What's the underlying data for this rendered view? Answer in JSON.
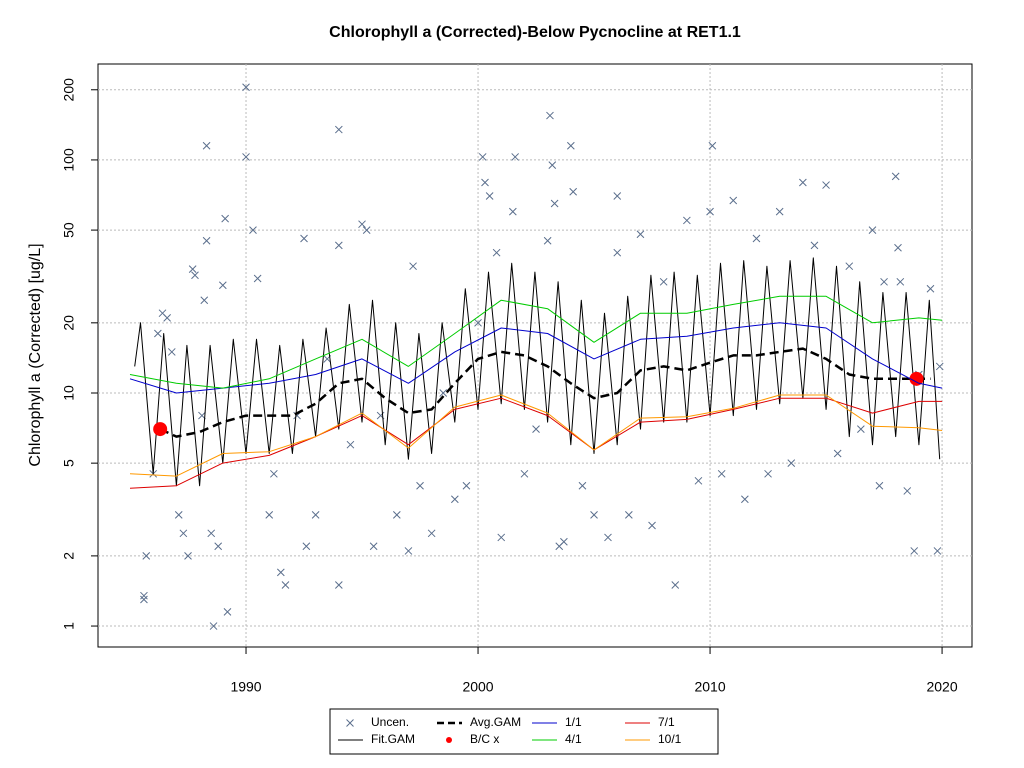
{
  "chart_data": {
    "type": "line",
    "title": "Chlorophyll a (Corrected)-Below Pycnocline at RET1.1",
    "y_label": "Chlorophyll a (Corrected) [ug/L]",
    "xlim": [
      1983.62,
      2021.29
    ],
    "xticks": [
      1990,
      2000,
      2010,
      2020
    ],
    "ylim": [
      0.813,
      258
    ],
    "yticks": [
      1,
      2,
      5,
      10,
      20,
      50,
      100,
      200
    ],
    "log_y": true,
    "grid": true,
    "series": [
      {
        "name": "Uncen.",
        "type": "scatter",
        "marker": "x",
        "color": "#5a6e8c",
        "x": [
          1985.6,
          1985.6,
          1985.7,
          1986.0,
          1986.2,
          1986.4,
          1986.6,
          1986.8,
          1987.1,
          1987.3,
          1987.5,
          1987.7,
          1987.8,
          1988.1,
          1988.2,
          1988.3,
          1988.3,
          1988.5,
          1988.6,
          1988.8,
          1989.0,
          1989.1,
          1989.2,
          1990.0,
          1990.0,
          1990.3,
          1990.5,
          1991.0,
          1991.2,
          1991.5,
          1991.7,
          1992.2,
          1992.5,
          1992.6,
          1993.0,
          1993.5,
          1994.0,
          1994.0,
          1994.0,
          1994.5,
          1995.0,
          1995.2,
          1995.5,
          1995.8,
          1996.5,
          1997.0,
          1997.2,
          1997.5,
          1998.0,
          1998.5,
          1999.0,
          1999.5,
          2000.0,
          2000.2,
          2000.3,
          2000.5,
          2000.8,
          2001.0,
          2001.5,
          2001.6,
          2002.0,
          2002.5,
          2003.0,
          2003.1,
          2003.2,
          2003.3,
          2003.5,
          2003.7,
          2004.0,
          2004.1,
          2004.5,
          2005.0,
          2005.6,
          2006.0,
          2006.0,
          2006.5,
          2007.0,
          2007.5,
          2008.0,
          2008.5,
          2009.0,
          2009.5,
          2010.0,
          2010.1,
          2010.5,
          2011.0,
          2011.5,
          2012.0,
          2012.5,
          2013.0,
          2013.5,
          2014.0,
          2014.5,
          2015.0,
          2015.5,
          2016.0,
          2016.5,
          2017.0,
          2017.3,
          2017.5,
          2018.0,
          2018.1,
          2018.2,
          2018.5,
          2018.8,
          2019.0,
          2019.5,
          2019.8,
          2019.9
        ],
        "values": [
          1.3,
          1.35,
          2.0,
          4.5,
          18,
          22,
          21,
          15,
          3,
          2.5,
          2.0,
          34,
          32,
          8,
          25,
          45,
          115,
          2.5,
          1.0,
          2.2,
          29,
          56,
          1.15,
          205,
          103,
          50,
          31,
          3,
          4.5,
          1.7,
          1.5,
          8,
          46,
          2.2,
          3,
          14,
          135,
          43,
          1.5,
          6,
          53,
          50,
          2.2,
          8,
          3,
          2.1,
          35,
          4,
          2.5,
          10,
          3.5,
          4,
          20,
          103,
          80,
          70,
          40,
          2.4,
          60,
          103,
          4.5,
          7,
          45,
          155,
          95,
          65,
          2.2,
          2.3,
          115,
          73,
          4,
          3,
          2.4,
          70,
          40,
          3.0,
          48,
          2.7,
          30,
          1.5,
          55,
          4.2,
          60,
          115,
          4.5,
          67,
          3.5,
          46,
          4.5,
          60,
          5,
          80,
          43,
          78,
          5.5,
          35,
          7,
          50,
          4,
          30,
          85,
          42,
          30,
          3.8,
          2.1,
          12,
          28,
          2.1,
          13
        ]
      },
      {
        "name": "Fit.GAM",
        "type": "line",
        "color": "#000000",
        "x": [
          1985.2,
          1985.45,
          1986.0,
          1986.45,
          1987.0,
          1987.45,
          1988.0,
          1988.45,
          1989.0,
          1989.45,
          1990.0,
          1990.45,
          1991.0,
          1991.45,
          1992.0,
          1992.45,
          1993.0,
          1993.45,
          1994.0,
          1994.45,
          1995.0,
          1995.45,
          1996.0,
          1996.45,
          1997.0,
          1997.45,
          1998.0,
          1998.45,
          1999.0,
          1999.45,
          2000.0,
          2000.45,
          2001.0,
          2001.45,
          2002.0,
          2002.45,
          2003.0,
          2003.45,
          2004.0,
          2004.45,
          2005.0,
          2005.45,
          2006.0,
          2006.45,
          2007.0,
          2007.45,
          2008.0,
          2008.45,
          2009.0,
          2009.45,
          2010.0,
          2010.45,
          2011.0,
          2011.45,
          2012.0,
          2012.45,
          2013.0,
          2013.45,
          2014.0,
          2014.45,
          2015.0,
          2015.45,
          2016.0,
          2016.45,
          2017.0,
          2017.45,
          2018.0,
          2018.45,
          2019.0,
          2019.45,
          2019.9
        ],
        "values": [
          13,
          20,
          4.5,
          18,
          4,
          16,
          4,
          16,
          5,
          17,
          5.5,
          17,
          5.5,
          16,
          5.5,
          17,
          6.5,
          19,
          7,
          24,
          7.5,
          25,
          6,
          20,
          5.2,
          18,
          5.5,
          20,
          7.5,
          28,
          8.5,
          33,
          9,
          36,
          8.5,
          33,
          7.5,
          30,
          6,
          25,
          5.5,
          22,
          6,
          26,
          7,
          32,
          7.5,
          33,
          7.5,
          32,
          8,
          36,
          8,
          37,
          8.5,
          35,
          9,
          37,
          9.5,
          38,
          8.5,
          35,
          6.5,
          30,
          6,
          27,
          6.5,
          27,
          6,
          25,
          5.2
        ]
      },
      {
        "name": "Avg.GAM",
        "type": "line",
        "dashed": true,
        "color": "#000000",
        "x": [
          1986.3,
          1987,
          1988,
          1989,
          1990,
          1991,
          1992,
          1993,
          1994,
          1995,
          1996,
          1997,
          1998,
          1999,
          2000,
          2001,
          2002,
          2003,
          2004,
          2005,
          2006,
          2007,
          2008,
          2009,
          2010,
          2011,
          2012,
          2013,
          2014,
          2015,
          2016,
          2017,
          2018,
          2019.5
        ],
        "values": [
          7.0,
          6.5,
          6.8,
          7.5,
          8.0,
          8.0,
          8.0,
          9,
          11,
          11.5,
          9.5,
          8.2,
          8.5,
          11,
          14,
          15,
          14.5,
          13,
          11,
          9.5,
          10,
          12.5,
          13,
          12.5,
          13.5,
          14.5,
          14.5,
          15,
          15.5,
          14,
          12,
          11.5,
          11.5,
          11.5
        ]
      },
      {
        "name": "B/C x",
        "type": "scatter",
        "marker": "dot",
        "color": "#ff0000",
        "x": [
          1986.3,
          2018.9
        ],
        "values": [
          7.0,
          11.5
        ]
      },
      {
        "name": "1/1",
        "type": "line",
        "color": "#0000cc",
        "x": [
          1985,
          1987,
          1989,
          1991,
          1993,
          1995,
          1997,
          1999,
          2001,
          2003,
          2005,
          2007,
          2009,
          2011,
          2013,
          2015,
          2017,
          2019,
          2020
        ],
        "values": [
          11.5,
          10,
          10.5,
          11,
          12,
          14,
          11,
          15,
          19,
          18,
          14,
          17,
          17.5,
          19,
          20,
          19,
          14,
          11,
          10.5
        ]
      },
      {
        "name": "4/1",
        "type": "line",
        "color": "#00cc00",
        "x": [
          1985,
          1987,
          1989,
          1991,
          1993,
          1995,
          1997,
          1999,
          2001,
          2003,
          2005,
          2007,
          2009,
          2011,
          2013,
          2015,
          2017,
          2019,
          2020
        ],
        "values": [
          12,
          11,
          10.5,
          11.5,
          14,
          17,
          13,
          18,
          25,
          23,
          16.5,
          22,
          22,
          24,
          26,
          26,
          20,
          21,
          20.5
        ]
      },
      {
        "name": "7/1",
        "type": "line",
        "color": "#dd0000",
        "x": [
          1985,
          1987,
          1989,
          1991,
          1993,
          1995,
          1997,
          1999,
          2001,
          2003,
          2005,
          2007,
          2009,
          2011,
          2013,
          2015,
          2017,
          2019,
          2020
        ],
        "values": [
          3.9,
          4.0,
          5,
          5.4,
          6.5,
          8,
          6,
          8.5,
          9.5,
          8,
          5.7,
          7.5,
          7.7,
          8.5,
          9.5,
          9.5,
          8.2,
          9.2,
          9.2
        ]
      },
      {
        "name": "10/1",
        "type": "line",
        "color": "#ff9900",
        "x": [
          1985,
          1987,
          1989,
          1991,
          1993,
          1995,
          1997,
          1999,
          2001,
          2003,
          2005,
          2007,
          2009,
          2011,
          2013,
          2015,
          2017,
          2019,
          2020
        ],
        "values": [
          4.5,
          4.4,
          5.5,
          5.6,
          6.5,
          8.2,
          5.8,
          8.7,
          9.8,
          8.2,
          5.7,
          7.8,
          7.9,
          8.6,
          9.8,
          9.8,
          7.2,
          7.1,
          6.9
        ]
      }
    ]
  }
}
